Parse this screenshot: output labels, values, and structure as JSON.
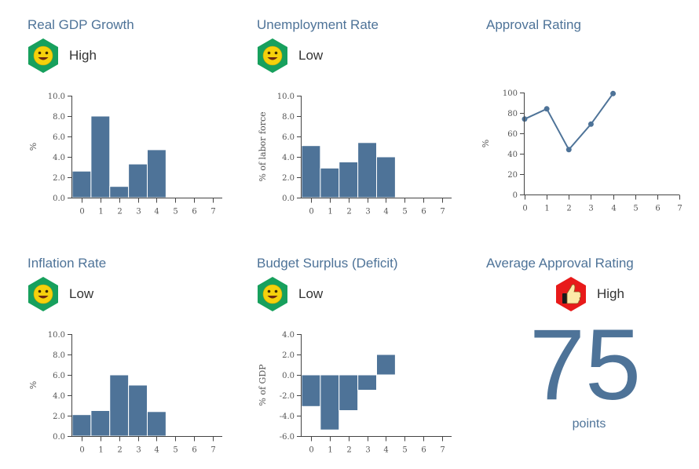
{
  "colors": {
    "accent": "#4e7398",
    "badge_good": "#17a05d",
    "badge_bad": "#e81a1a",
    "face": "#f5d10c"
  },
  "panels": [
    {
      "title": "Real GDP Growth",
      "status": {
        "label": "High",
        "icon": "smiley-face-icon"
      }
    },
    {
      "title": "Unemployment Rate",
      "status": {
        "label": "Low",
        "icon": "smiley-face-icon"
      }
    },
    {
      "title": "Approval Rating"
    },
    {
      "title": "Inflation Rate",
      "status": {
        "label": "Low",
        "icon": "smiley-face-icon"
      }
    },
    {
      "title": "Budget Surplus (Deficit)",
      "status": {
        "label": "Low",
        "icon": "smiley-face-icon"
      }
    },
    {
      "title": "Average Approval Rating",
      "status": {
        "label": "High",
        "icon": "thumbs-up-icon"
      },
      "value": "75",
      "unit": "points"
    }
  ],
  "chart_data": [
    {
      "type": "bar",
      "title": "Real GDP Growth",
      "ylabel": "%",
      "x": [
        0,
        1,
        2,
        3,
        4
      ],
      "values": [
        2.6,
        8.0,
        1.1,
        3.3,
        4.7
      ],
      "xlim": [
        -0.5,
        7.5
      ],
      "xticks": [
        0,
        1,
        2,
        3,
        4,
        5,
        6,
        7
      ],
      "ylim": [
        0,
        10
      ],
      "yticks": [
        "0.0",
        "2.0",
        "4.0",
        "6.0",
        "8.0",
        "10.0"
      ]
    },
    {
      "type": "bar",
      "title": "Unemployment Rate",
      "ylabel": "% of labor force",
      "x": [
        0,
        1,
        2,
        3,
        4
      ],
      "values": [
        5.1,
        2.9,
        3.5,
        5.4,
        4.0
      ],
      "xlim": [
        -0.5,
        7.5
      ],
      "xticks": [
        0,
        1,
        2,
        3,
        4,
        5,
        6,
        7
      ],
      "ylim": [
        0,
        10
      ],
      "yticks": [
        "0.0",
        "2.0",
        "4.0",
        "6.0",
        "8.0",
        "10.0"
      ]
    },
    {
      "type": "line",
      "title": "Approval Rating",
      "ylabel": "%",
      "x": [
        0,
        1,
        2,
        3,
        4
      ],
      "values": [
        74,
        84,
        44,
        69,
        99
      ],
      "xlim": [
        0,
        7
      ],
      "xticks": [
        0,
        1,
        2,
        3,
        4,
        5,
        6,
        7
      ],
      "ylim": [
        0,
        100
      ],
      "yticks": [
        "0",
        "20",
        "40",
        "60",
        "80",
        "100"
      ]
    },
    {
      "type": "bar",
      "title": "Inflation Rate",
      "ylabel": "%",
      "x": [
        0,
        1,
        2,
        3,
        4
      ],
      "values": [
        2.1,
        2.5,
        6.0,
        5.0,
        2.4
      ],
      "xlim": [
        -0.5,
        7.5
      ],
      "xticks": [
        0,
        1,
        2,
        3,
        4,
        5,
        6,
        7
      ],
      "ylim": [
        0,
        10
      ],
      "yticks": [
        "0.0",
        "2.0",
        "4.0",
        "6.0",
        "8.0",
        "10.0"
      ]
    },
    {
      "type": "bar",
      "title": "Budget Surplus (Deficit)",
      "ylabel": "% of GDP",
      "x": [
        0,
        1,
        2,
        3,
        4
      ],
      "values": [
        -3.1,
        -5.4,
        -3.5,
        -1.5,
        2.0
      ],
      "xlim": [
        -0.5,
        7.5
      ],
      "xticks": [
        0,
        1,
        2,
        3,
        4,
        5,
        6,
        7
      ],
      "ylim": [
        -6,
        4
      ],
      "yticks": [
        "-6.0",
        "-4.0",
        "-2.0",
        "0.0",
        "2.0",
        "4.0"
      ]
    }
  ]
}
